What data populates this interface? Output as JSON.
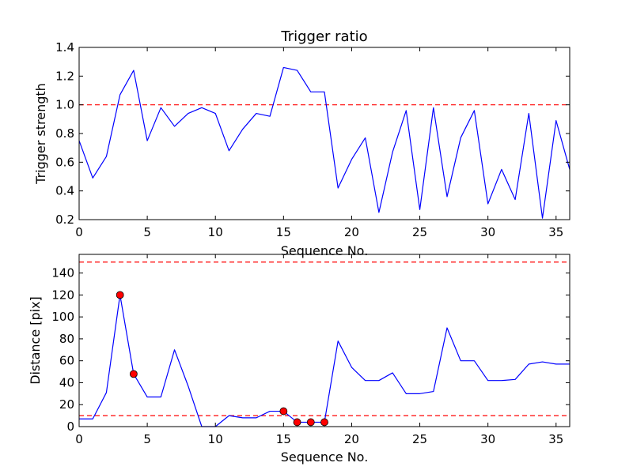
{
  "chart_data": [
    {
      "type": "line",
      "title": "Trigger ratio",
      "xlabel": "Sequence No.",
      "ylabel": "Trigger strength",
      "xlim": [
        0,
        36
      ],
      "ylim": [
        0.2,
        1.4
      ],
      "xticks": [
        0,
        5,
        10,
        15,
        20,
        25,
        30,
        35
      ],
      "yticks": [
        0.2,
        0.4,
        0.6,
        0.8,
        1.0,
        1.2,
        1.4
      ],
      "ytick_labels": [
        "0.2",
        "0.4",
        "0.6",
        "0.8",
        "1.0",
        "1.2",
        "1.4"
      ],
      "grid": false,
      "series": [
        {
          "color": "#0000ff",
          "x": [
            0,
            1,
            2,
            3,
            4,
            5,
            6,
            7,
            8,
            9,
            10,
            11,
            12,
            13,
            14,
            15,
            16,
            17,
            18,
            19,
            20,
            21,
            22,
            23,
            24,
            25,
            26,
            27,
            28,
            29,
            30,
            31,
            32,
            33,
            34,
            35,
            36
          ],
          "y": [
            0.75,
            0.49,
            0.64,
            1.07,
            1.24,
            0.75,
            0.98,
            0.85,
            0.94,
            0.98,
            0.94,
            0.68,
            0.83,
            0.94,
            0.92,
            1.26,
            1.24,
            1.09,
            1.09,
            0.42,
            0.62,
            0.77,
            0.25,
            0.67,
            0.96,
            0.27,
            0.98,
            0.36,
            0.77,
            0.96,
            0.31,
            0.55,
            0.34,
            0.94,
            0.21,
            0.89,
            0.55
          ]
        }
      ],
      "reference_lines": [
        {
          "y": 1.0,
          "color": "#ff0000",
          "style": "dashed"
        }
      ]
    },
    {
      "type": "line",
      "title": "",
      "xlabel": "Sequence No.",
      "ylabel": "Distance [pix]",
      "xlim": [
        0,
        36
      ],
      "ylim": [
        0,
        157
      ],
      "xticks": [
        0,
        5,
        10,
        15,
        20,
        25,
        30,
        35
      ],
      "yticks": [
        0,
        20,
        40,
        60,
        80,
        100,
        120,
        140
      ],
      "ytick_labels": [
        "0",
        "20",
        "40",
        "60",
        "80",
        "100",
        "120",
        "140"
      ],
      "grid": false,
      "series": [
        {
          "color": "#0000ff",
          "x": [
            0,
            1,
            2,
            3,
            4,
            5,
            6,
            7,
            8,
            9,
            10,
            11,
            12,
            13,
            14,
            15,
            16,
            17,
            18,
            19,
            20,
            21,
            22,
            23,
            24,
            25,
            26,
            27,
            28,
            29,
            30,
            31,
            32,
            33,
            34,
            35,
            36
          ],
          "y": [
            7,
            7,
            31,
            120,
            48,
            27,
            27,
            70,
            37,
            0,
            0,
            10,
            8,
            8,
            14,
            14,
            4,
            4,
            4,
            78,
            54,
            42,
            42,
            49,
            30,
            30,
            32,
            90,
            60,
            60,
            42,
            42,
            43,
            57,
            59,
            57,
            57
          ]
        }
      ],
      "highlighted_points": {
        "color": "#ff0000",
        "x": [
          3,
          4,
          15,
          16,
          17,
          18
        ],
        "y": [
          120,
          48,
          14,
          4,
          4,
          4
        ]
      },
      "reference_lines": [
        {
          "y": 150,
          "color": "#ff0000",
          "style": "dashed"
        },
        {
          "y": 10,
          "color": "#ff0000",
          "style": "dashed"
        }
      ]
    }
  ]
}
